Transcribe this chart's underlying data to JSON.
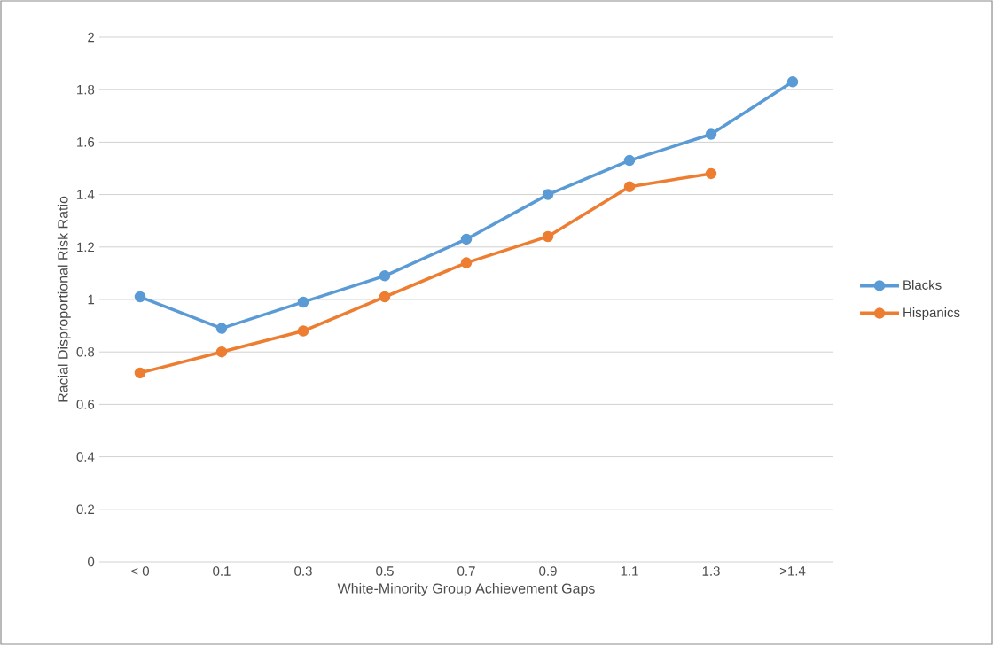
{
  "chart_data": {
    "type": "line",
    "xlabel": "White-Minority Group Achievement Gaps",
    "ylabel": "Racial Disproportional Risk Ratio",
    "categories": [
      "< 0",
      "0.1",
      "0.3",
      "0.5",
      "0.7",
      "0.9",
      "1.1",
      "1.3",
      ">1.4"
    ],
    "series": [
      {
        "name": "Blacks",
        "color": "#5b9bd5",
        "values": [
          1.01,
          0.89,
          0.99,
          1.09,
          1.23,
          1.4,
          1.53,
          1.63,
          1.83
        ]
      },
      {
        "name": "Hispanics",
        "color": "#ed7d31",
        "values": [
          0.72,
          0.8,
          0.88,
          1.01,
          1.14,
          1.24,
          1.43,
          1.48,
          null
        ]
      }
    ],
    "ylim": [
      0,
      2
    ],
    "yticks": [
      0,
      0.2,
      0.4,
      0.6,
      0.8,
      1,
      1.2,
      1.4,
      1.6,
      1.8,
      2
    ],
    "grid": "y",
    "legend": "right",
    "marker": "circle",
    "line_style": "solid"
  }
}
